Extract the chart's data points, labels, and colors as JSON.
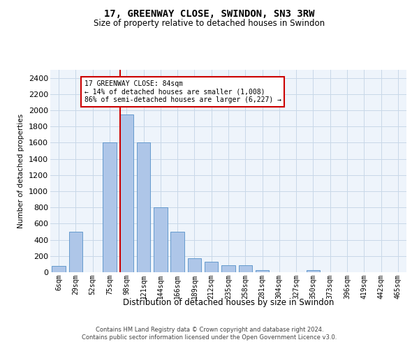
{
  "title": "17, GREENWAY CLOSE, SWINDON, SN3 3RW",
  "subtitle": "Size of property relative to detached houses in Swindon",
  "xlabel": "Distribution of detached houses by size in Swindon",
  "ylabel": "Number of detached properties",
  "categories": [
    "6sqm",
    "29sqm",
    "52sqm",
    "75sqm",
    "98sqm",
    "121sqm",
    "144sqm",
    "166sqm",
    "189sqm",
    "212sqm",
    "235sqm",
    "258sqm",
    "281sqm",
    "304sqm",
    "327sqm",
    "350sqm",
    "373sqm",
    "396sqm",
    "419sqm",
    "442sqm",
    "465sqm"
  ],
  "values": [
    75,
    500,
    0,
    1600,
    1950,
    1600,
    800,
    500,
    175,
    130,
    90,
    90,
    30,
    0,
    0,
    30,
    0,
    0,
    0,
    0,
    0
  ],
  "bar_color": "#aec6e8",
  "bar_edge_color": "#5590c8",
  "ylim": [
    0,
    2500
  ],
  "yticks": [
    0,
    200,
    400,
    600,
    800,
    1000,
    1200,
    1400,
    1600,
    1800,
    2000,
    2200,
    2400
  ],
  "red_line_x": 3.6,
  "annotation_line1": "17 GREENWAY CLOSE: 84sqm",
  "annotation_line2": "← 14% of detached houses are smaller (1,008)",
  "annotation_line3": "86% of semi-detached houses are larger (6,227) →",
  "annotation_box_color": "#ffffff",
  "annotation_border_color": "#cc0000",
  "red_line_color": "#cc0000",
  "grid_color": "#c8d8e8",
  "background_color": "#eef4fb",
  "footer_line1": "Contains HM Land Registry data © Crown copyright and database right 2024.",
  "footer_line2": "Contains public sector information licensed under the Open Government Licence v3.0."
}
